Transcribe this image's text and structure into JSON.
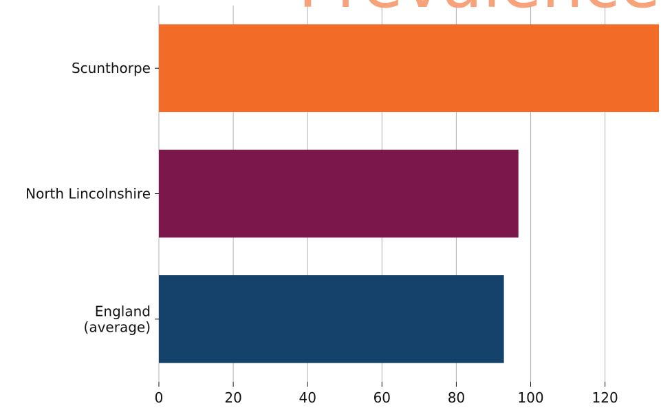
{
  "chart_data": {
    "type": "bar",
    "orientation": "horizontal",
    "title": "Prevalence",
    "categories": [
      "Scunthorpe",
      "North Lincolnshire",
      "England\n(average)"
    ],
    "values": [
      134.5,
      96.7,
      92.8
    ],
    "colors": [
      "#f26b27",
      "#7b174b",
      "#14426b"
    ],
    "title_color": "#f7a27a",
    "xlim": [
      0,
      134.5
    ],
    "xticks": [
      0,
      20,
      40,
      60,
      80,
      100,
      120
    ],
    "xlabel": "",
    "ylabel": "",
    "grid": "x"
  }
}
